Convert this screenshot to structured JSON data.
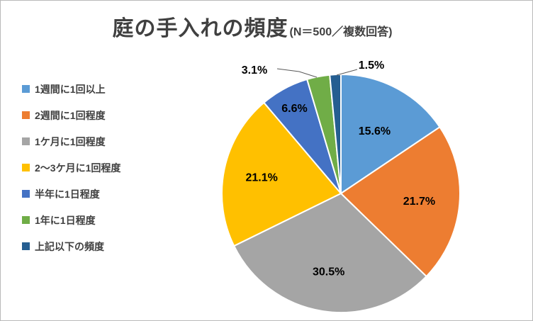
{
  "title": {
    "main": "庭の手入れの頻度",
    "sub": "(N＝500／複数回答)",
    "color": "#404040"
  },
  "chart_data": {
    "type": "pie",
    "title": "庭の手入れの頻度",
    "subtitle": "(N＝500／複数回答)",
    "sample_size_note": "N＝500／複数回答",
    "categories": [
      "1週間に1回以上",
      "2週間に1回程度",
      "1ケ月に1回程度",
      "2～3ケ月に1回程度",
      "半年に1日程度",
      "1年に1日程度",
      "上記以下の頻度"
    ],
    "values": [
      15.6,
      21.7,
      30.5,
      21.1,
      6.6,
      3.1,
      1.5
    ],
    "labels": [
      "15.6%",
      "21.7%",
      "30.5%",
      "21.1%",
      "6.6%",
      "3.1%",
      "1.5%"
    ],
    "unit": "%",
    "colors": [
      "#5B9BD5",
      "#ED7D31",
      "#A5A5A5",
      "#FFC000",
      "#4472C4",
      "#70AD47",
      "#255E91"
    ],
    "start_angle_deg": 0,
    "direction": "clockwise",
    "legend_position": "left",
    "outside_labels": [
      false,
      false,
      false,
      false,
      false,
      true,
      true
    ]
  }
}
